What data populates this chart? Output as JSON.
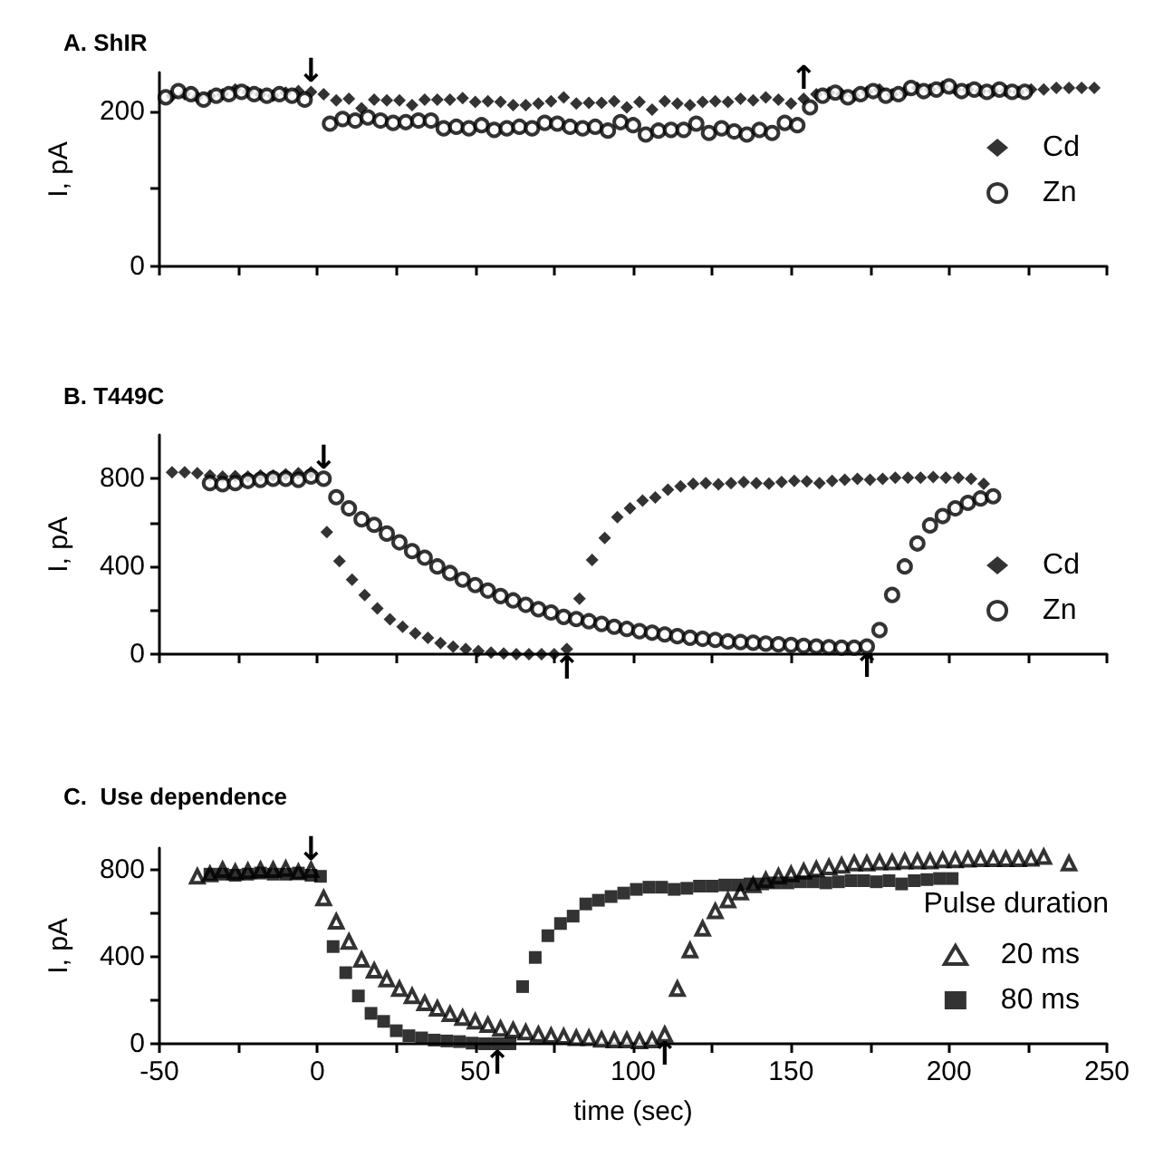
{
  "chart_data": [
    {
      "type": "scatter",
      "title": "A. ShIR",
      "ylabel": "I, pA",
      "xlim": [
        -50,
        250
      ],
      "xticks": [
        -50,
        {
          "value": -25,
          "label": null
        },
        {
          "value": 0,
          "label": null
        },
        {
          "value": 25,
          "label": null
        },
        {
          "value": 50,
          "label": null
        },
        {
          "value": 75,
          "label": null
        },
        {
          "value": 100,
          "label": null
        },
        {
          "value": 125,
          "label": null
        },
        {
          "value": 150,
          "label": null
        },
        {
          "value": 175,
          "label": null
        },
        {
          "value": 200,
          "label": null
        },
        {
          "value": 225,
          "label": null
        },
        {
          "value": 250,
          "label": null
        }
      ],
      "ylim": [
        0,
        250
      ],
      "yticks": [
        0,
        {
          "value": 100,
          "label": null
        },
        200
      ],
      "tick_labels": "y",
      "grid": false,
      "legend": "right",
      "annotations": [
        {
          "text": "↓",
          "x": -2,
          "y": 225
        },
        {
          "text": "↑",
          "x": 154,
          "y": 216
        }
      ],
      "series": [
        {
          "name": "Cd",
          "color": "#000000",
          "marker": "diamond",
          "x": [
            -46,
            -42,
            -38,
            -34,
            -30,
            -26,
            -22,
            -18,
            -14,
            -10,
            -6,
            -2,
            2,
            6,
            10,
            14,
            18,
            22,
            26,
            30,
            34,
            38,
            42,
            46,
            50,
            54,
            58,
            62,
            66,
            70,
            74,
            78,
            82,
            86,
            90,
            94,
            98,
            102,
            106,
            110,
            114,
            118,
            122,
            126,
            130,
            134,
            138,
            142,
            146,
            150,
            154,
            158,
            162,
            166,
            170,
            174,
            178,
            182,
            186,
            190,
            194,
            198,
            202,
            206,
            210,
            214,
            218,
            222,
            226,
            230,
            234,
            238,
            242,
            246
          ],
          "values": [
            220,
            222,
            218,
            220,
            222,
            228,
            225,
            222,
            220,
            224,
            226,
            225,
            222,
            214,
            216,
            204,
            215,
            214,
            214,
            208,
            215,
            215,
            215,
            217,
            212,
            213,
            212,
            208,
            208,
            210,
            213,
            218,
            210,
            211,
            211,
            213,
            205,
            212,
            202,
            213,
            210,
            208,
            212,
            213,
            212,
            216,
            214,
            218,
            215,
            210,
            216,
            222,
            224,
            222,
            220,
            225,
            228,
            222,
            225,
            230,
            228,
            232,
            228,
            228,
            226,
            226,
            226,
            225,
            228,
            228,
            230,
            230,
            230,
            230
          ]
        },
        {
          "name": "Zn",
          "color": "#000000",
          "marker": "circle",
          "x": [
            -48,
            -44,
            -40,
            -36,
            -32,
            -28,
            -24,
            -20,
            -16,
            -12,
            -8,
            -4,
            4,
            8,
            12,
            16,
            20,
            24,
            28,
            32,
            36,
            40,
            44,
            48,
            52,
            56,
            60,
            64,
            68,
            72,
            76,
            80,
            84,
            88,
            92,
            96,
            100,
            104,
            108,
            112,
            116,
            120,
            124,
            128,
            132,
            136,
            140,
            144,
            148,
            152,
            156,
            160,
            164,
            168,
            172,
            176,
            180,
            184,
            188,
            192,
            196,
            200,
            204,
            208,
            212,
            216,
            220,
            224
          ],
          "values": [
            218,
            226,
            222,
            215,
            220,
            222,
            225,
            222,
            220,
            222,
            220,
            215,
            184,
            190,
            188,
            192,
            188,
            185,
            186,
            188,
            188,
            178,
            180,
            178,
            182,
            176,
            178,
            180,
            178,
            185,
            184,
            180,
            178,
            180,
            175,
            186,
            182,
            170,
            175,
            176,
            176,
            184,
            172,
            178,
            174,
            170,
            176,
            172,
            185,
            182,
            205,
            220,
            224,
            218,
            222,
            226,
            220,
            222,
            230,
            226,
            228,
            232,
            226,
            228,
            225,
            228,
            225,
            225
          ]
        }
      ]
    },
    {
      "type": "scatter",
      "title": "B. T449C",
      "ylabel": "I, pA",
      "xlim": [
        -50,
        250
      ],
      "xticks": [
        -50,
        {
          "value": -25,
          "label": null
        },
        {
          "value": 0,
          "label": null
        },
        {
          "value": 25,
          "label": null
        },
        {
          "value": 50,
          "label": null
        },
        {
          "value": 75,
          "label": null
        },
        {
          "value": 100,
          "label": null
        },
        {
          "value": 125,
          "label": null
        },
        {
          "value": 150,
          "label": null
        },
        {
          "value": 175,
          "label": null
        },
        {
          "value": 200,
          "label": null
        },
        {
          "value": 225,
          "label": null
        },
        {
          "value": 250,
          "label": null
        }
      ],
      "ylim": [
        0,
        1000
      ],
      "yticks": [
        0,
        {
          "value": 200,
          "label": null
        },
        400,
        {
          "value": 600,
          "label": null
        },
        800
      ],
      "tick_labels": "y",
      "grid": false,
      "legend": "bottom right",
      "annotations": [
        {
          "text": "↓",
          "x": 2,
          "y": 800
        },
        {
          "text": "↑",
          "x": 79,
          "y": 24
        },
        {
          "text": "↑",
          "x": 174,
          "y": 35
        }
      ],
      "series": [
        {
          "name": "Cd",
          "color": "#000000",
          "marker": "diamond",
          "x": [
            -46,
            -42,
            -38,
            -34,
            -30,
            -26,
            -22,
            -18,
            -14,
            -10,
            -6,
            -2,
            3,
            7,
            11,
            15,
            19,
            23,
            27,
            31,
            35,
            39,
            43,
            47,
            51,
            55,
            59,
            63,
            67,
            71,
            75,
            79,
            83,
            87,
            91,
            95,
            99,
            103,
            107,
            111,
            115,
            119,
            123,
            127,
            131,
            135,
            139,
            143,
            147,
            151,
            155,
            159,
            163,
            167,
            171,
            175,
            179,
            183,
            187,
            191,
            195,
            199,
            203,
            207,
            211
          ],
          "values": [
            830,
            830,
            825,
            815,
            810,
            812,
            810,
            815,
            815,
            820,
            825,
            830,
            557,
            425,
            340,
            270,
            209,
            159,
            125,
            95,
            74,
            51,
            34,
            24,
            14,
            7,
            3,
            0,
            0,
            0,
            0,
            24,
            253,
            430,
            530,
            625,
            665,
            700,
            715,
            750,
            766,
            777,
            780,
            775,
            780,
            785,
            780,
            778,
            785,
            790,
            788,
            780,
            790,
            795,
            800,
            795,
            800,
            805,
            805,
            805,
            808,
            805,
            805,
            800,
            777
          ]
        },
        {
          "name": "Zn",
          "color": "#000000",
          "marker": "circle",
          "x": [
            -34,
            -30,
            -26,
            -22,
            -18,
            -14,
            -10,
            -6,
            -2,
            2,
            6,
            10,
            14,
            18,
            22,
            26,
            30,
            34,
            38,
            42,
            46,
            50,
            54,
            58,
            62,
            66,
            70,
            74,
            78,
            82,
            86,
            90,
            94,
            98,
            102,
            106,
            110,
            114,
            118,
            122,
            126,
            130,
            134,
            138,
            142,
            146,
            150,
            154,
            158,
            162,
            166,
            170,
            174,
            178,
            182,
            186,
            190,
            194,
            198,
            202,
            206,
            210,
            214
          ],
          "values": [
            780,
            775,
            780,
            790,
            795,
            800,
            800,
            795,
            810,
            800,
            716,
            665,
            615,
            590,
            550,
            510,
            470,
            440,
            400,
            370,
            340,
            315,
            290,
            265,
            245,
            225,
            205,
            190,
            170,
            160,
            150,
            138,
            125,
            115,
            105,
            98,
            90,
            82,
            75,
            70,
            65,
            58,
            55,
            52,
            48,
            45,
            42,
            38,
            35,
            32,
            30,
            30,
            35,
            110,
            270,
            400,
            505,
            587,
            630,
            665,
            690,
            710,
            720
          ]
        }
      ]
    },
    {
      "type": "scatter",
      "title": "C.  Use dependence",
      "xlabel": "time (sec)",
      "ylabel": "I, pA",
      "legend_title": "Pulse duration",
      "xlim": [
        -50,
        250
      ],
      "xticks": [
        -50,
        {
          "value": -25,
          "label": null
        },
        0,
        {
          "value": 25,
          "label": null
        },
        50,
        {
          "value": 75,
          "label": null
        },
        100,
        {
          "value": 125,
          "label": null
        },
        150,
        {
          "value": 175,
          "label": null
        },
        200,
        {
          "value": 225,
          "label": null
        },
        250
      ],
      "ylim": [
        0,
        900
      ],
      "yticks": [
        0,
        {
          "value": 200,
          "label": null
        },
        400,
        {
          "value": 600,
          "label": null
        },
        800
      ],
      "grid": false,
      "legend": "bottom right",
      "annotations": [
        {
          "text": "↓",
          "x": -2,
          "y": 800
        },
        {
          "text": "↑",
          "x": 57,
          "y": 0
        },
        {
          "text": "↑",
          "x": 110,
          "y": 43
        }
      ],
      "series": [
        {
          "name": "20 ms",
          "color": "#000000",
          "marker": "triangle",
          "x": [
            -38,
            -34,
            -30,
            -26,
            -22,
            -18,
            -14,
            -10,
            -6,
            -2,
            2,
            6,
            10,
            14,
            18,
            22,
            26,
            30,
            34,
            38,
            42,
            46,
            50,
            54,
            58,
            62,
            66,
            70,
            74,
            78,
            82,
            86,
            90,
            94,
            98,
            102,
            106,
            110,
            114,
            118,
            122,
            126,
            130,
            134,
            138,
            142,
            146,
            150,
            154,
            158,
            162,
            166,
            170,
            174,
            178,
            182,
            186,
            190,
            194,
            198,
            202,
            206,
            210,
            214,
            218,
            222,
            226,
            230,
            238
          ],
          "values": [
            770,
            780,
            800,
            790,
            795,
            800,
            800,
            805,
            790,
            800,
            670,
            563,
            470,
            387,
            337,
            297,
            253,
            220,
            187,
            163,
            137,
            120,
            103,
            87,
            70,
            63,
            53,
            43,
            37,
            33,
            27,
            27,
            20,
            17,
            17,
            13,
            17,
            43,
            253,
            430,
            530,
            610,
            660,
            697,
            730,
            753,
            770,
            780,
            793,
            803,
            813,
            820,
            830,
            830,
            835,
            835,
            840,
            840,
            840,
            845,
            845,
            848,
            850,
            850,
            850,
            850,
            852,
            860,
            830
          ]
        },
        {
          "name": "80 ms",
          "color": "#000000",
          "marker": "square",
          "x": [
            -34,
            -30,
            -26,
            -22,
            -18,
            -14,
            -10,
            -6,
            -2,
            1,
            5,
            9,
            13,
            17,
            21,
            25,
            29,
            33,
            37,
            41,
            45,
            49,
            53,
            57,
            61,
            65,
            69,
            73,
            77,
            81,
            85,
            89,
            93,
            97,
            101,
            105,
            109,
            113,
            117,
            121,
            125,
            129,
            133,
            137,
            141,
            145,
            149,
            153,
            157,
            161,
            165,
            169,
            173,
            177,
            181,
            185,
            189,
            193,
            197,
            201
          ],
          "values": [
            780,
            780,
            775,
            780,
            785,
            780,
            780,
            785,
            775,
            770,
            447,
            327,
            220,
            140,
            103,
            60,
            37,
            27,
            17,
            13,
            10,
            3,
            0,
            0,
            0,
            263,
            397,
            497,
            553,
            587,
            643,
            660,
            677,
            693,
            710,
            720,
            720,
            710,
            715,
            725,
            725,
            730,
            730,
            735,
            735,
            740,
            740,
            745,
            745,
            740,
            745,
            750,
            750,
            745,
            750,
            735,
            750,
            755,
            760,
            760
          ]
        }
      ]
    }
  ]
}
